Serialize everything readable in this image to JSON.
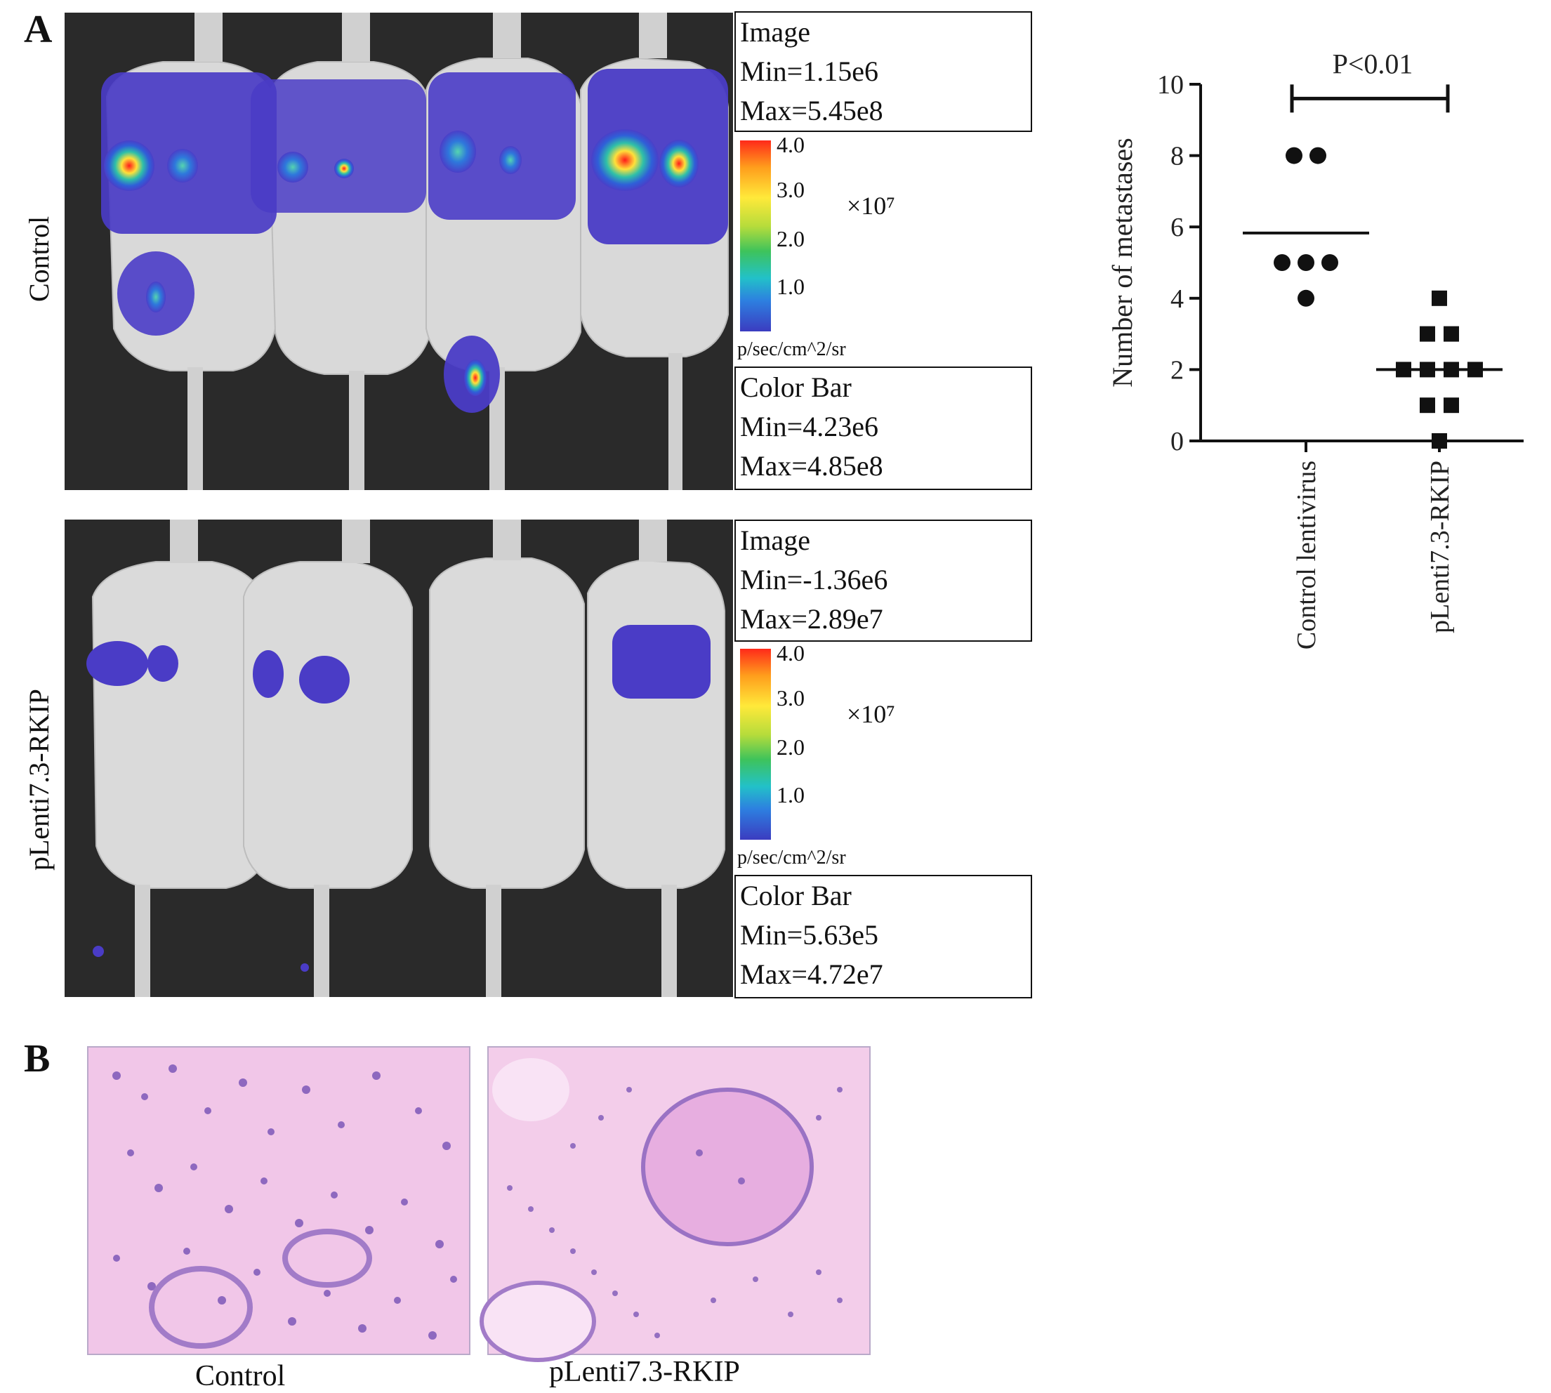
{
  "panel_a": {
    "label": "A",
    "rows": [
      {
        "label": "Control",
        "image_box": {
          "title": "Image",
          "min": "Min=1.15e6",
          "max": "Max=5.45e8"
        },
        "colorbar": {
          "ticks": [
            "4.0",
            "3.0",
            "2.0",
            "1.0"
          ],
          "multiplier": "×10⁷",
          "unit": "p/sec/cm^2/sr"
        },
        "color_bar_box": {
          "title": "Color Bar",
          "min": "Min=4.23e6",
          "max": "Max=4.85e8"
        }
      },
      {
        "label": "pLenti7.3-RKIP",
        "image_box": {
          "title": "Image",
          "min": "Min=-1.36e6",
          "max": "Max=2.89e7"
        },
        "colorbar": {
          "ticks": [
            "4.0",
            "3.0",
            "2.0",
            "1.0"
          ],
          "multiplier": "×10⁷",
          "unit": "p/sec/cm^2/sr"
        },
        "color_bar_box": {
          "title": "Color Bar",
          "min": "Min=5.63e5",
          "max": "Max=4.72e7"
        }
      }
    ]
  },
  "panel_b": {
    "label": "B",
    "captions": [
      "Control",
      "pLenti7.3-RKIP"
    ]
  },
  "chart_data": {
    "type": "scatter",
    "title": "",
    "ylabel": "Number of metastases",
    "xlabel": "",
    "ylim": [
      0,
      10
    ],
    "yticks": [
      0,
      2,
      4,
      6,
      8,
      10
    ],
    "categories": [
      "Control lentivirus",
      "pLenti7.3-RKIP"
    ],
    "annotation": "P<0.01",
    "grid": false,
    "series": [
      {
        "values": [
          8,
          8,
          5,
          5,
          5,
          4
        ],
        "mean": 5.83,
        "marker": "circle"
      },
      {
        "values": [
          4,
          3,
          3,
          2,
          2,
          2,
          2,
          1,
          1,
          0
        ],
        "mean": 2.0,
        "marker": "square"
      }
    ]
  }
}
